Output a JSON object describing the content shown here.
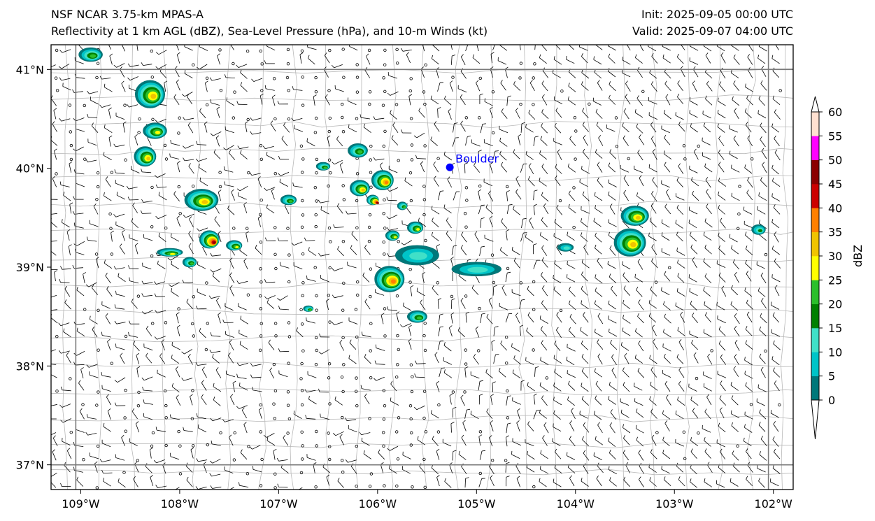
{
  "titles": {
    "left_line1": "NSF NCAR 3.75-km MPAS-A",
    "left_line2": "Reflectivity at 1 km AGL (dBZ), Sea-Level Pressure (hPa), and 10-m Winds (kt)",
    "right_line1": "Init: 2025-09-05 00:00 UTC",
    "right_line2": "Valid: 2025-09-07 04:00 UTC"
  },
  "map": {
    "lon_range": [
      -109.3,
      -101.8
    ],
    "lat_range": [
      36.75,
      41.25
    ],
    "lon_ticks": [
      {
        "value": -109,
        "label": "109°W"
      },
      {
        "value": -108,
        "label": "108°W"
      },
      {
        "value": -107,
        "label": "107°W"
      },
      {
        "value": -106,
        "label": "106°W"
      },
      {
        "value": -105,
        "label": "105°W"
      },
      {
        "value": -104,
        "label": "104°W"
      },
      {
        "value": -103,
        "label": "103°W"
      },
      {
        "value": -102,
        "label": "102°W"
      }
    ],
    "lat_ticks": [
      {
        "value": 41,
        "label": "41°N"
      },
      {
        "value": 40,
        "label": "40°N"
      },
      {
        "value": 39,
        "label": "39°N"
      },
      {
        "value": 38,
        "label": "38°N"
      },
      {
        "value": 37,
        "label": "37°N"
      }
    ],
    "state_borders": {
      "lon": [
        -109.05,
        -102.05
      ],
      "lat": [
        37.0,
        41.0
      ]
    },
    "city": {
      "name": "Boulder",
      "lon": -105.27,
      "lat": 40.01,
      "color": "#0000ff"
    },
    "storms": [
      {
        "lon": -108.9,
        "lat": 41.15,
        "rx": 0.12,
        "ry": 0.07,
        "max_dbz": 20
      },
      {
        "lon": -108.3,
        "lat": 40.75,
        "rx": 0.15,
        "ry": 0.14,
        "max_dbz": 30
      },
      {
        "lon": -108.25,
        "lat": 40.38,
        "rx": 0.12,
        "ry": 0.08,
        "max_dbz": 25
      },
      {
        "lon": -108.35,
        "lat": 40.12,
        "rx": 0.11,
        "ry": 0.1,
        "max_dbz": 30
      },
      {
        "lon": -107.78,
        "lat": 39.68,
        "rx": 0.17,
        "ry": 0.11,
        "max_dbz": 30
      },
      {
        "lon": -107.7,
        "lat": 39.28,
        "rx": 0.1,
        "ry": 0.09,
        "max_dbz": 45
      },
      {
        "lon": -107.45,
        "lat": 39.22,
        "rx": 0.08,
        "ry": 0.05,
        "max_dbz": 25
      },
      {
        "lon": -108.1,
        "lat": 39.15,
        "rx": 0.13,
        "ry": 0.04,
        "max_dbz": 25
      },
      {
        "lon": -107.9,
        "lat": 39.05,
        "rx": 0.07,
        "ry": 0.05,
        "max_dbz": 20
      },
      {
        "lon": -106.9,
        "lat": 39.68,
        "rx": 0.08,
        "ry": 0.05,
        "max_dbz": 20
      },
      {
        "lon": -106.55,
        "lat": 40.02,
        "rx": 0.07,
        "ry": 0.04,
        "max_dbz": 20
      },
      {
        "lon": -106.2,
        "lat": 40.18,
        "rx": 0.1,
        "ry": 0.07,
        "max_dbz": 20
      },
      {
        "lon": -106.18,
        "lat": 39.8,
        "rx": 0.1,
        "ry": 0.08,
        "max_dbz": 30
      },
      {
        "lon": -105.95,
        "lat": 39.88,
        "rx": 0.11,
        "ry": 0.1,
        "max_dbz": 35
      },
      {
        "lon": -106.05,
        "lat": 39.68,
        "rx": 0.06,
        "ry": 0.05,
        "max_dbz": 45
      },
      {
        "lon": -105.75,
        "lat": 39.62,
        "rx": 0.05,
        "ry": 0.04,
        "max_dbz": 20
      },
      {
        "lon": -105.85,
        "lat": 39.32,
        "rx": 0.07,
        "ry": 0.05,
        "max_dbz": 25
      },
      {
        "lon": -105.62,
        "lat": 39.4,
        "rx": 0.08,
        "ry": 0.06,
        "max_dbz": 25
      },
      {
        "lon": -105.6,
        "lat": 39.12,
        "rx": 0.22,
        "ry": 0.1,
        "max_dbz": 10
      },
      {
        "lon": -105.88,
        "lat": 38.88,
        "rx": 0.15,
        "ry": 0.13,
        "max_dbz": 35
      },
      {
        "lon": -105.0,
        "lat": 38.98,
        "rx": 0.25,
        "ry": 0.07,
        "max_dbz": 10
      },
      {
        "lon": -105.6,
        "lat": 38.5,
        "rx": 0.1,
        "ry": 0.06,
        "max_dbz": 20
      },
      {
        "lon": -106.7,
        "lat": 38.58,
        "rx": 0.05,
        "ry": 0.03,
        "max_dbz": 20
      },
      {
        "lon": -104.1,
        "lat": 39.2,
        "rx": 0.08,
        "ry": 0.04,
        "max_dbz": 10
      },
      {
        "lon": -103.4,
        "lat": 39.52,
        "rx": 0.14,
        "ry": 0.1,
        "max_dbz": 30
      },
      {
        "lon": -103.45,
        "lat": 39.25,
        "rx": 0.16,
        "ry": 0.14,
        "max_dbz": 30
      },
      {
        "lon": -102.15,
        "lat": 39.38,
        "rx": 0.07,
        "ry": 0.05,
        "max_dbz": 15
      }
    ]
  },
  "colorbar": {
    "label": "dBZ",
    "levels": [
      0,
      5,
      10,
      15,
      20,
      25,
      30,
      35,
      40,
      45,
      50,
      55,
      60
    ],
    "colors": [
      "#00787a",
      "#00c4c8",
      "#40e0c8",
      "#008000",
      "#2bbf2b",
      "#ffff00",
      "#f0c400",
      "#ff8000",
      "#cc0000",
      "#8b0000",
      "#ff00ff",
      "#ffe0d0"
    ]
  }
}
